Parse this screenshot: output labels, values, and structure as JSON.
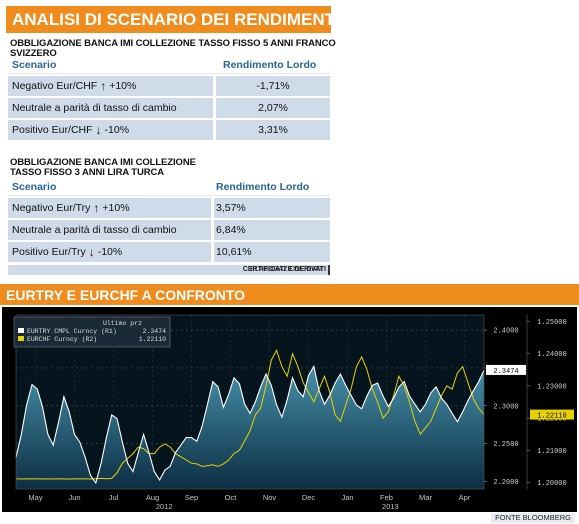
{
  "section1": {
    "title": "ANALISI DI SCENARIO DEI RENDIMENTI",
    "bond1": {
      "title": "OBBLIGAZIONE BANCA IMI COLLEZIONE TASSO FISSO 5 ANNI FRANCO SVIZZERO",
      "col_scenario": "Scenario",
      "col_rendimento": "Rendimento Lordo",
      "rows": [
        {
          "label": "Negativo Eur/CHF",
          "arrow": "↑",
          "pct": "+10%",
          "value": "-1,71%"
        },
        {
          "label": "Neutrale a parità di tasso di cambio",
          "arrow": "",
          "pct": "",
          "value": "2,07%"
        },
        {
          "label": "Positivo Eur/CHF",
          "arrow": "↓",
          "pct": "-10%",
          "value": "3,31%"
        }
      ]
    },
    "bond2": {
      "title_line1": "OBBLIGAZIONE BANCA IMI COLLEZIONE",
      "title_line2": "TASSO FISSO 3 ANNI LIRA TURCA",
      "col_scenario": "Scenario",
      "col_rendimento": "Rendimento Lordo",
      "rows": [
        {
          "label": "Negativo Eur/Try",
          "arrow": "↑",
          "pct": "+10%",
          "value": "3,57%"
        },
        {
          "label": "Neutrale a parità di tasso di cambio",
          "arrow": "",
          "pct": "",
          "value": "6,84%"
        },
        {
          "label": "Positivo Eur/Try",
          "arrow": "↓",
          "pct": "-10%",
          "value": "10,61%"
        }
      ]
    },
    "credit_prefix": "ELABORAZIONE DATI ",
    "credit_bold": "CERTIFICATI E DERIVATI"
  },
  "section2": {
    "title": "EURTRY E EURCHF A CONFRONTO",
    "source": "FONTE BLOOMBERG"
  },
  "colors": {
    "orange": "#f08c1e",
    "eurtry": "#ffffff",
    "eurchf": "#e6d200",
    "area_top": "#4a97b0",
    "area_bottom": "#0c2f45",
    "price_tag": "#e6d200"
  },
  "chart_data": {
    "type": "line",
    "legend": {
      "header": "Ultimo prz",
      "items": [
        {
          "text": "EURTRY CMPL Curncy  (R1)",
          "value": "2.3474"
        },
        {
          "text": "EURCHF Curncy  (R2)",
          "value": "1.22110"
        }
      ]
    },
    "x_labels": [
      "May",
      "Jun",
      "Jul",
      "Aug",
      "Sep",
      "Oct",
      "Nov",
      "Dec",
      "Jan",
      "Feb",
      "Mar",
      "Apr"
    ],
    "year_labels": [
      "2012",
      "2013"
    ],
    "axis_r1": {
      "ticks": [
        "2.4000",
        "2.3500",
        "2.3000",
        "2.2500",
        "2.2000"
      ],
      "range": [
        2.19,
        2.42
      ],
      "last": "2.3474"
    },
    "axis_r2": {
      "ticks": [
        "1.25000",
        "1.24000",
        "1.23000",
        "1.22000",
        "1.21000",
        "1.20000"
      ],
      "range": [
        1.198,
        1.252
      ],
      "last": "1.22110"
    },
    "series": [
      {
        "name": "EURTRY CMPL Curncy",
        "axis": "R1",
        "values": [
          2.232,
          2.262,
          2.301,
          2.328,
          2.322,
          2.298,
          2.262,
          2.248,
          2.278,
          2.312,
          2.292,
          2.262,
          2.252,
          2.232,
          2.208,
          2.198,
          2.224,
          2.258,
          2.288,
          2.283,
          2.252,
          2.224,
          2.213,
          2.238,
          2.262,
          2.238,
          2.213,
          2.202,
          2.215,
          2.22,
          2.238,
          2.248,
          2.258,
          2.258,
          2.253,
          2.273,
          2.302,
          2.332,
          2.325,
          2.298,
          2.315,
          2.337,
          2.329,
          2.302,
          2.29,
          2.305,
          2.325,
          2.342,
          2.327,
          2.301,
          2.285,
          2.308,
          2.337,
          2.32,
          2.312,
          2.34,
          2.352,
          2.32,
          2.302,
          2.314,
          2.33,
          2.342,
          2.327,
          2.314,
          2.301,
          2.296,
          2.313,
          2.327,
          2.33,
          2.313,
          2.299,
          2.31,
          2.325,
          2.332,
          2.313,
          2.302,
          2.292,
          2.302,
          2.317,
          2.325,
          2.31,
          2.302,
          2.29,
          2.279,
          2.292,
          2.307,
          2.32,
          2.332,
          2.347
        ]
      },
      {
        "name": "EURCHF Curncy",
        "axis": "R2",
        "values": [
          1.2012,
          1.2011,
          1.2012,
          1.2011,
          1.2012,
          1.2011,
          1.2012,
          1.2011,
          1.2012,
          1.2011,
          1.2011,
          1.2012,
          1.2011,
          1.2012,
          1.2011,
          1.2012,
          1.2013,
          1.2012,
          1.2013,
          1.203,
          1.206,
          1.2075,
          1.209,
          1.211,
          1.2105,
          1.209,
          1.209,
          1.211,
          1.212,
          1.211,
          1.209,
          1.208,
          1.207,
          1.206,
          1.2058,
          1.205,
          1.2052,
          1.2055,
          1.205,
          1.2058,
          1.207,
          1.209,
          1.21,
          1.213,
          1.216,
          1.221,
          1.223,
          1.23,
          1.238,
          1.241,
          1.236,
          1.233,
          1.24,
          1.236,
          1.231,
          1.228,
          1.225,
          1.229,
          1.233,
          1.228,
          1.221,
          1.219,
          1.224,
          1.229,
          1.236,
          1.239,
          1.235,
          1.229,
          1.225,
          1.22,
          1.222,
          1.227,
          1.233,
          1.23,
          1.225,
          1.219,
          1.215,
          1.217,
          1.219,
          1.223,
          1.227,
          1.23,
          1.229,
          1.234,
          1.236,
          1.231,
          1.226,
          1.223,
          1.2211
        ]
      }
    ]
  }
}
